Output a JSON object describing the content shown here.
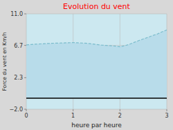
{
  "chart_data": {
    "type": "area",
    "title": "Evolution du vent",
    "x_label": "heure par heure",
    "y_label": "Force du vent en Km/h",
    "x": [
      0.0,
      0.1,
      0.2,
      0.3,
      0.4,
      0.5,
      0.6,
      0.7,
      0.8,
      0.9,
      1.0,
      1.1,
      1.2,
      1.3,
      1.4,
      1.5,
      1.6,
      1.7,
      1.8,
      1.9,
      2.0,
      2.1,
      2.2,
      2.3,
      2.4,
      2.5,
      2.6,
      2.7,
      2.8,
      2.9,
      3.0
    ],
    "series": [
      {
        "values": [
          6.78,
          6.82,
          6.87,
          6.9,
          6.94,
          6.97,
          7.0,
          7.02,
          7.04,
          7.06,
          7.08,
          7.05,
          7.02,
          6.98,
          6.9,
          6.82,
          6.75,
          6.7,
          6.65,
          6.6,
          6.52,
          6.65,
          6.85,
          7.1,
          7.35,
          7.58,
          7.8,
          8.05,
          8.25,
          8.55,
          8.8
        ],
        "color": "#7bbccc",
        "line_style": "dashed"
      }
    ],
    "color": "#b8dcea",
    "baseline": -0.5,
    "xlim": [
      0,
      3
    ],
    "ylim": [
      -2.0,
      11.0
    ],
    "xticks": [
      0,
      1,
      2,
      3
    ],
    "yticks": [
      {
        "value": -2.0,
        "label": "−2.0"
      },
      2.3,
      6.7,
      {
        "value": 11.0,
        "label": "11.0"
      }
    ],
    "grid": true
  }
}
